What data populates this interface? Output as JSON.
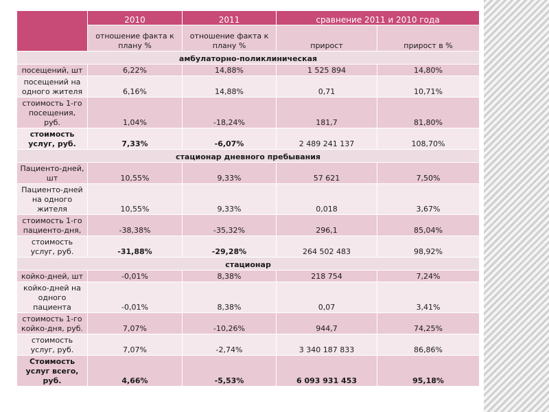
{
  "header": {
    "y2010": "2010",
    "y2011": "2011",
    "comparison": "сравнение 2011 и 2010 года",
    "ratio_2010": "отношение факта к плану %",
    "ratio_2011": "отношение факта к плану %",
    "growth": "прирост",
    "growth_pct": "прирост в %"
  },
  "sections": [
    {
      "title": "амбулаторно-поликлиническая",
      "rows": [
        {
          "label": "посещений, шт",
          "v2010": "6,22%",
          "v2011": "14,88%",
          "growth": "1 525 894",
          "growth_pct": "14,80%"
        },
        {
          "label": "посещений на одного жителя",
          "v2010": "6,16%",
          "v2011": "14,88%",
          "growth": "0,71",
          "growth_pct": "10,71%"
        },
        {
          "label": "стоимость 1-го посещения, руб.",
          "v2010": "1,04%",
          "v2011": "-18,24%",
          "growth": "181,7",
          "growth_pct": "81,80%"
        },
        {
          "label": "стоимость услуг, руб.",
          "v2010": "7,33%",
          "v2011": "-6,07%",
          "growth": "2 489 241 137",
          "growth_pct": "108,70%"
        }
      ]
    },
    {
      "title": "стационар дневного пребывания",
      "rows": [
        {
          "label": "Пациенто-дней, шт",
          "v2010": "10,55%",
          "v2011": "9,33%",
          "growth": "57 621",
          "growth_pct": "7,50%"
        },
        {
          "label": "Пациенто-дней на одного жителя",
          "v2010": "10,55%",
          "v2011": "9,33%",
          "growth": "0,018",
          "growth_pct": "3,67%"
        },
        {
          "label": "стоимость 1-го пациенто-дня,",
          "v2010": "-38,38%",
          "v2011": "-35,32%",
          "growth": "296,1",
          "growth_pct": "85,04%"
        },
        {
          "label": "стоимость услуг, руб.",
          "v2010": "-31,88%",
          "v2011": "-29,28%",
          "growth": "264 502 483",
          "growth_pct": "98,92%"
        }
      ]
    },
    {
      "title": "стационар",
      "rows": [
        {
          "label": "койко-дней, шт",
          "v2010": "-0,01%",
          "v2011": "8,38%",
          "growth": "218 754",
          "growth_pct": "7,24%"
        },
        {
          "label": "койко-дней на одного пациента",
          "v2010": "-0,01%",
          "v2011": "8,38%",
          "growth": "0,07",
          "growth_pct": "3,41%"
        },
        {
          "label": "стоимость 1-го койко-дня, руб.",
          "v2010": "7,07%",
          "v2011": "-10,26%",
          "growth": "944,7",
          "growth_pct": "74,25%"
        },
        {
          "label": "стоимость услуг, руб.",
          "v2010": "7,07%",
          "v2011": "-2,74%",
          "growth": "3 340 187 833",
          "growth_pct": "86,86%"
        }
      ]
    }
  ],
  "total": {
    "label": "Стоимость услуг всего, руб.",
    "v2010": "4,66%",
    "v2011": "-5,53%",
    "growth": "6 093 931 453",
    "growth_pct": "95,18%"
  },
  "colors": {
    "header_accent": "#c84a77",
    "row_pink": "#e9c9d3",
    "row_light": "#f4e8ec"
  }
}
